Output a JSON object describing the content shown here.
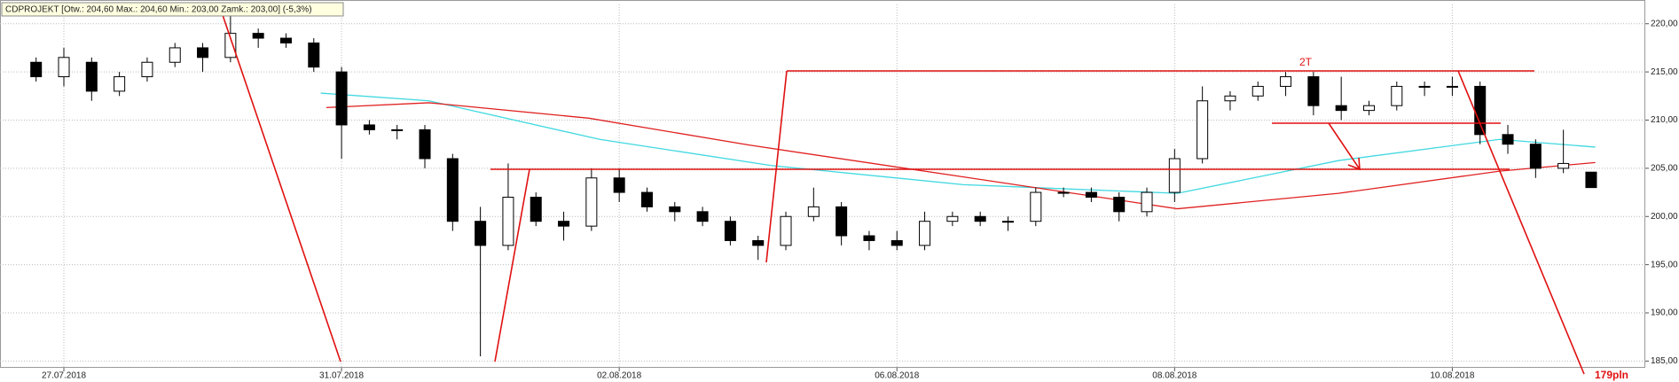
{
  "chart_data": {
    "type": "candlestick",
    "title": "CDPROJEKT [Otw.: 204,60  Max.: 204,60  Min.: 203,00  Zamk.: 203,00] (-5,3%)",
    "x": [
      -0.2,
      0.0,
      0.2,
      0.4,
      0.6,
      0.8,
      1.0,
      1.2,
      1.4,
      1.6,
      1.8,
      2.0,
      2.2,
      2.4,
      2.6,
      2.8,
      3.0,
      3.2,
      3.4,
      3.6,
      3.8,
      4.0,
      4.2,
      4.4,
      4.6,
      4.8,
      5.0,
      5.2,
      5.4,
      5.6,
      5.8,
      6.0,
      6.2,
      6.4,
      6.6,
      6.8,
      7.0,
      7.2,
      7.4,
      7.6,
      7.8,
      8.0,
      8.2,
      8.4,
      8.6,
      8.8,
      9.0,
      9.2,
      9.4,
      9.6,
      9.8,
      10.0,
      10.2,
      10.4,
      10.6,
      10.8,
      11.0
    ],
    "open": [
      216,
      214.5,
      216,
      213,
      214.5,
      216,
      217.5,
      216.5,
      219,
      218.5,
      218,
      215,
      209.5,
      209,
      209,
      206,
      199.5,
      197,
      202,
      199.5,
      199,
      204,
      202.5,
      201,
      200.5,
      199.5,
      197.5,
      197,
      200,
      201,
      198,
      197.5,
      197,
      199.5,
      200,
      199.5,
      199.5,
      202.5,
      202.5,
      202,
      200.5,
      202.5,
      206,
      212,
      212.5,
      213.5,
      214.5,
      211.5,
      211,
      211.5,
      213.5,
      213.5,
      213.5,
      208.5,
      207.5,
      205,
      204.6
    ],
    "high": [
      216.5,
      217.5,
      216.5,
      215,
      216.5,
      218,
      218,
      221,
      219.5,
      219,
      218.5,
      215.5,
      210,
      209.5,
      209.5,
      206.5,
      201,
      205.5,
      202.5,
      200.5,
      205,
      205,
      203,
      201.5,
      201,
      200,
      198,
      200.5,
      203,
      201.5,
      198.5,
      198.5,
      200.5,
      200.5,
      200.5,
      200,
      203,
      203,
      203,
      202.5,
      203,
      207,
      213.5,
      213,
      214,
      215,
      215,
      214.5,
      212,
      214,
      214,
      214.5,
      214,
      209.5,
      208,
      209,
      204.6
    ],
    "low": [
      214,
      213.5,
      212,
      212.5,
      214,
      215.5,
      215,
      216,
      217.5,
      217.5,
      215,
      206,
      208.5,
      208,
      205,
      198.5,
      185.5,
      196.5,
      199,
      197.5,
      198.5,
      201.5,
      200.5,
      199.5,
      199,
      197,
      195.5,
      196.5,
      199.5,
      197,
      196.5,
      196.5,
      196.5,
      199,
      199,
      198.5,
      199,
      202,
      201.5,
      199.5,
      200,
      201.5,
      205.5,
      211,
      212,
      212.5,
      210.5,
      210,
      210.5,
      211,
      212.5,
      212.5,
      207.5,
      206.5,
      204,
      204.5,
      203
    ],
    "close": [
      214.5,
      216.5,
      213,
      214.5,
      216,
      217.5,
      216.5,
      219,
      218.5,
      218,
      215.5,
      209.5,
      209,
      209,
      206,
      199.5,
      197,
      202,
      199.5,
      199,
      204,
      202.5,
      201,
      200.5,
      199.5,
      197.5,
      197,
      200,
      201,
      198,
      197.5,
      197,
      199.5,
      200,
      199.5,
      199.5,
      202.5,
      202.5,
      202,
      200.5,
      202.5,
      206,
      212,
      212.5,
      213.5,
      214.5,
      211.5,
      211,
      211.5,
      213.5,
      213.5,
      213.5,
      208.5,
      207.5,
      205,
      205.5,
      203
    ],
    "lines": [
      {
        "color": "#3fd8e0",
        "x": [
          1.85,
          2.63,
          3.86,
          5.09,
          6.48,
          8.02,
          9.18,
          10.34,
          11.03
        ],
        "values": [
          212.8,
          212,
          208,
          205.3,
          203.3,
          202.4,
          205.8,
          208,
          207.2
        ]
      },
      {
        "color": "#e02020",
        "x": [
          1.89,
          2.63,
          3.78,
          4.94,
          6.48,
          8.02,
          9.18,
          10.34,
          11.03
        ],
        "values": [
          211.3,
          211.8,
          210.2,
          207.4,
          204.1,
          200.8,
          202.4,
          204.7,
          205.6
        ]
      }
    ],
    "annotations": [
      "2T",
      "179pln"
    ],
    "xlim": [
      -0.46,
      11.39
    ],
    "ylim": [
      184.3,
      222
    ],
    "xticks": [
      {
        "value": 0,
        "label": "27.07.2018"
      },
      {
        "value": 2,
        "label": "31.07.2018"
      },
      {
        "value": 4,
        "label": "02.08.2018"
      },
      {
        "value": 6,
        "label": "06.08.2018"
      },
      {
        "value": 8,
        "label": "08.08.2018"
      },
      {
        "value": 10,
        "label": "10.08.2018"
      }
    ],
    "yticks": [
      {
        "value": 185,
        "label": "185,00"
      },
      {
        "value": 190,
        "label": "190,00"
      },
      {
        "value": 195,
        "label": "195,00"
      },
      {
        "value": 200,
        "label": "200,00"
      },
      {
        "value": 205,
        "label": "205,00"
      },
      {
        "value": 210,
        "label": "210,00"
      },
      {
        "value": 215,
        "label": "215,00"
      },
      {
        "value": 220,
        "label": "220,00"
      }
    ],
    "grid": true
  }
}
